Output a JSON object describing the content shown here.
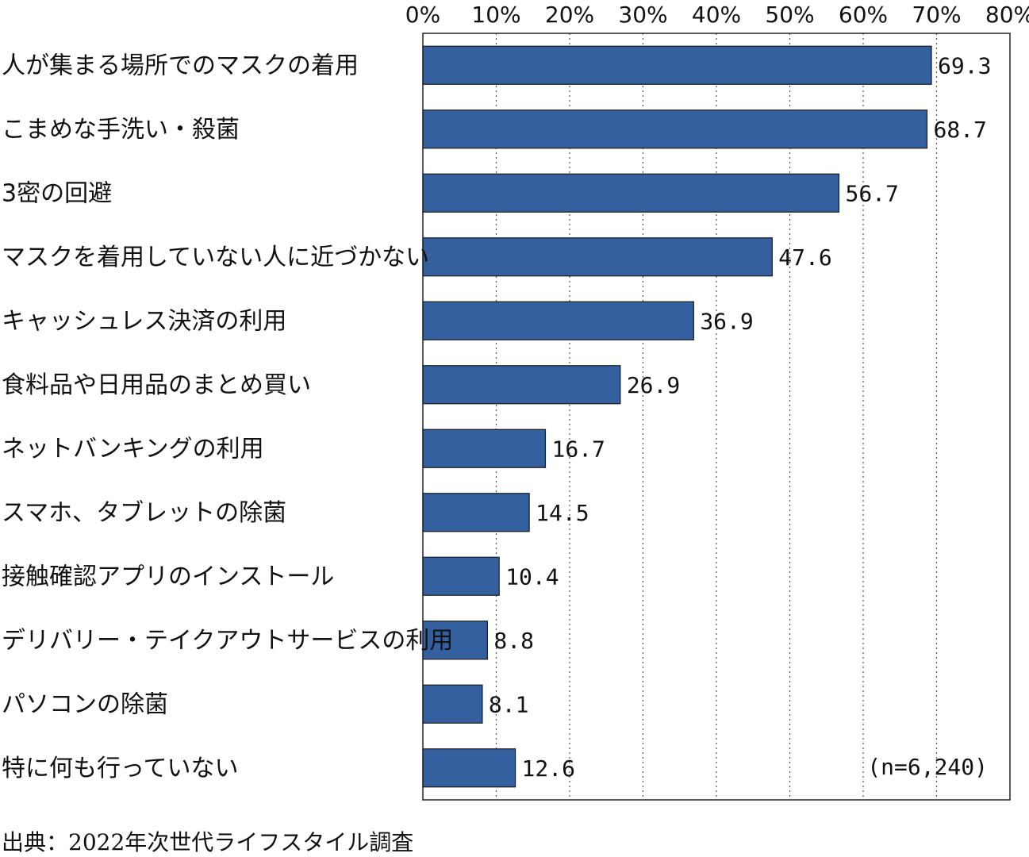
{
  "chart_data": {
    "type": "bar",
    "orientation": "horizontal",
    "categories": [
      "人が集まる場所でのマスクの着用",
      "こまめな手洗い・殺菌",
      "3密の回避",
      "マスクを着用していない人に近づかない",
      "キャッシュレス決済の利用",
      "食料品や日用品のまとめ買い",
      "ネットバンキングの利用",
      "スマホ、タブレットの除菌",
      "接触確認アプリのインストール",
      "デリバリー・テイクアウトサービスの利用",
      "パソコンの除菌",
      "特に何も行っていない"
    ],
    "values": [
      69.3,
      68.7,
      56.7,
      47.6,
      36.9,
      26.9,
      16.7,
      14.5,
      10.4,
      8.8,
      8.1,
      12.6
    ],
    "value_labels": [
      "69.3",
      "68.7",
      "56.7",
      "47.6",
      "36.9",
      "26.9",
      "16.7",
      "14.5",
      "10.4",
      "8.8",
      "8.1",
      "12.6"
    ],
    "xlim": [
      0,
      80
    ],
    "x_ticks": [
      "0%",
      "10%",
      "20%",
      "30%",
      "40%",
      "50%",
      "60%",
      "70%",
      "80%"
    ],
    "x_axis_position": "top",
    "grid": "vertical dotted",
    "bar_color": "#3560a0",
    "annotation": "(n=6,240)"
  },
  "source": "出典：2022年次世代ライフスタイル調査"
}
